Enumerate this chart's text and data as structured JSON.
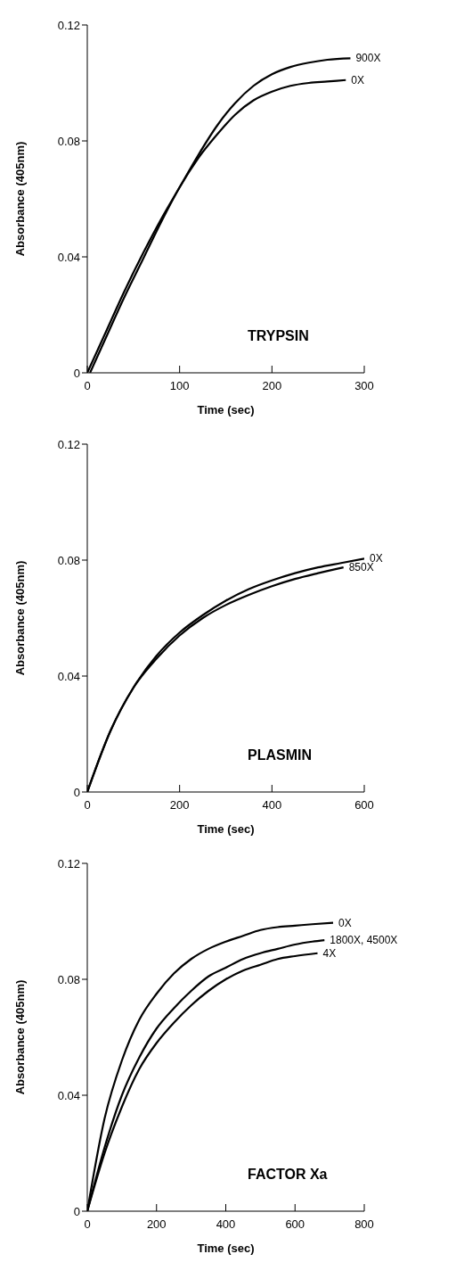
{
  "chart_data": [
    {
      "type": "line",
      "title": "TRYPSIN",
      "xlabel": "Time (sec)",
      "ylabel": "Absorbance (405nm)",
      "xlim": [
        0,
        300
      ],
      "xticks": [
        0,
        100,
        200,
        300
      ],
      "ylim": [
        0,
        0.12
      ],
      "yticks": [
        0,
        0.04,
        0.08,
        0.12
      ],
      "grid": false,
      "legend": false,
      "marker": "none",
      "line_style": "solid",
      "series": [
        {
          "name": "900X",
          "color": "#000000",
          "x": [
            0,
            20,
            40,
            60,
            80,
            100,
            120,
            140,
            160,
            180,
            200,
            220,
            240,
            260,
            285
          ],
          "values": [
            0,
            0.014,
            0.028,
            0.041,
            0.053,
            0.064,
            0.075,
            0.085,
            0.093,
            0.099,
            0.103,
            0.1055,
            0.107,
            0.108,
            0.1085
          ]
        },
        {
          "name": "0X",
          "color": "#000000",
          "x": [
            3,
            20,
            40,
            60,
            80,
            100,
            120,
            140,
            160,
            180,
            200,
            220,
            240,
            260,
            280
          ],
          "values": [
            0,
            0.012,
            0.026,
            0.039,
            0.052,
            0.064,
            0.074,
            0.082,
            0.089,
            0.094,
            0.097,
            0.099,
            0.1,
            0.1005,
            0.101
          ]
        }
      ]
    },
    {
      "type": "line",
      "title": "PLASMIN",
      "xlabel": "Time (sec)",
      "ylabel": "Absorbance (405nm)",
      "xlim": [
        0,
        600
      ],
      "xticks": [
        0,
        200,
        400,
        600
      ],
      "ylim": [
        0,
        0.12
      ],
      "yticks": [
        0,
        0.04,
        0.08,
        0.12
      ],
      "grid": false,
      "legend": false,
      "marker": "none",
      "line_style": "solid",
      "series": [
        {
          "name": "0X",
          "color": "#000000",
          "x": [
            0,
            50,
            100,
            150,
            200,
            250,
            300,
            350,
            400,
            450,
            500,
            550,
            600
          ],
          "values": [
            0,
            0.021,
            0.036,
            0.047,
            0.055,
            0.061,
            0.066,
            0.07,
            0.073,
            0.0755,
            0.0775,
            0.079,
            0.0805
          ]
        },
        {
          "name": "850X",
          "color": "#000000",
          "x": [
            0,
            50,
            100,
            150,
            200,
            250,
            300,
            350,
            400,
            450,
            500,
            555
          ],
          "values": [
            0,
            0.021,
            0.036,
            0.046,
            0.054,
            0.06,
            0.0645,
            0.068,
            0.071,
            0.0735,
            0.0755,
            0.0775
          ]
        }
      ]
    },
    {
      "type": "line",
      "title": "FACTOR Xa",
      "xlabel": "Time (sec)",
      "ylabel": "Absorbance (405nm)",
      "xlim": [
        0,
        800
      ],
      "xticks": [
        0,
        200,
        400,
        600,
        800
      ],
      "ylim": [
        0,
        0.12
      ],
      "yticks": [
        0,
        0.04,
        0.08,
        0.12
      ],
      "grid": false,
      "legend": false,
      "marker": "none",
      "line_style": "solid",
      "series": [
        {
          "name": "0X",
          "color": "#000000",
          "x": [
            0,
            50,
            100,
            150,
            200,
            250,
            300,
            350,
            400,
            450,
            500,
            550,
            600,
            650,
            710
          ],
          "values": [
            0,
            0.032,
            0.052,
            0.066,
            0.075,
            0.082,
            0.087,
            0.0905,
            0.093,
            0.095,
            0.097,
            0.098,
            0.0985,
            0.099,
            0.0995
          ]
        },
        {
          "name": "1800X, 4500X",
          "color": "#000000",
          "x": [
            0,
            50,
            100,
            150,
            200,
            250,
            300,
            350,
            400,
            450,
            500,
            550,
            600,
            650,
            685
          ],
          "values": [
            0,
            0.022,
            0.04,
            0.053,
            0.063,
            0.07,
            0.076,
            0.081,
            0.084,
            0.087,
            0.089,
            0.0905,
            0.092,
            0.093,
            0.0935
          ]
        },
        {
          "name": "4X",
          "color": "#000000",
          "x": [
            0,
            50,
            100,
            150,
            200,
            250,
            300,
            350,
            400,
            450,
            500,
            550,
            600,
            665
          ],
          "values": [
            0,
            0.02,
            0.036,
            0.049,
            0.058,
            0.065,
            0.071,
            0.076,
            0.08,
            0.083,
            0.085,
            0.087,
            0.088,
            0.089
          ]
        }
      ]
    }
  ]
}
